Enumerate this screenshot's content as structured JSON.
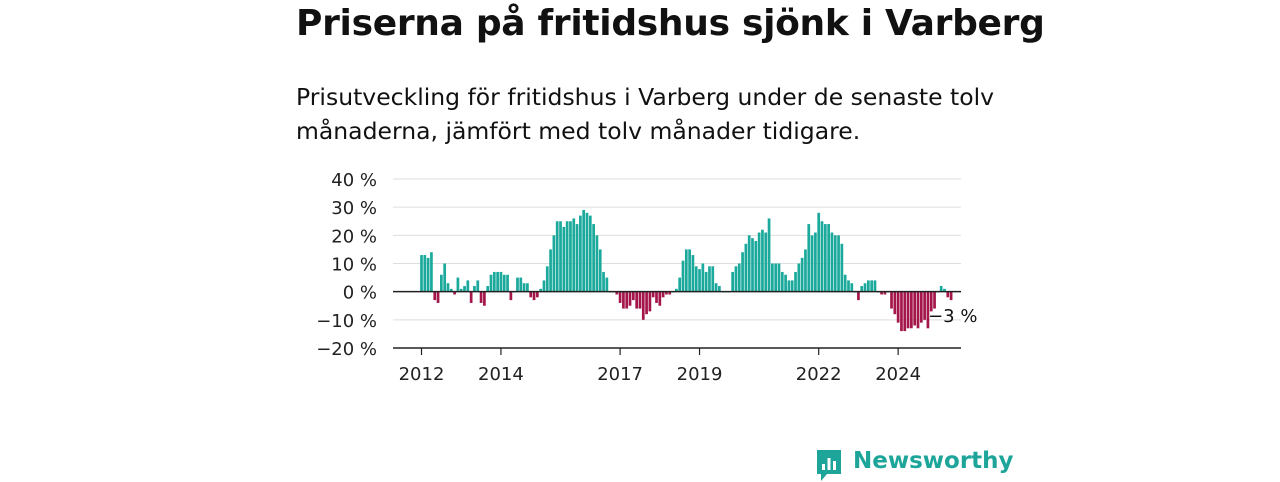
{
  "title": "Priserna på fritidshus sjönk i Varberg",
  "subtitle": "Prisutveckling för fritidshus i Varberg under de senaste tolv månaderna, jämfört med tolv månader tidigare.",
  "brand": {
    "name": "Newsworthy",
    "icon": "newsworthy-logo-icon"
  },
  "colors": {
    "positive": "#1ba99c",
    "negative": "#a4164a",
    "grid": "#dedede",
    "axis": "#222222",
    "brand": "#1da59a"
  },
  "chart_data": {
    "type": "bar",
    "ylim": [
      -20,
      40
    ],
    "yticks": [
      40,
      30,
      20,
      10,
      0,
      -10,
      -20
    ],
    "ytick_labels": [
      "40 %",
      "30 %",
      "20 %",
      "10 %",
      "0 %",
      "−10 %",
      "−20 %"
    ],
    "xtick_labels": [
      "2012",
      "2014",
      "2017",
      "2019",
      "2022",
      "2024"
    ],
    "grid": true,
    "annotation": "−3 %",
    "start": "2012-01",
    "frequency": "monthly",
    "values": [
      13,
      13,
      12,
      14,
      -3,
      -4,
      6,
      10,
      3,
      1,
      -1,
      5,
      1,
      2,
      4,
      -4,
      2,
      4,
      -4,
      -5,
      2,
      6,
      7,
      7,
      7,
      6,
      6,
      -3,
      0,
      5,
      5,
      3,
      3,
      -2,
      -3,
      -2,
      1,
      4,
      9,
      15,
      20,
      25,
      25,
      23,
      25,
      25,
      26,
      24,
      27,
      29,
      28,
      27,
      24,
      20,
      15,
      7,
      5,
      0,
      0,
      -1,
      -4,
      -6,
      -6,
      -5,
      -3,
      -6,
      -6,
      -10,
      -8,
      -7,
      -2,
      -4,
      -5,
      -2,
      -1,
      -1,
      0,
      1,
      5,
      11,
      15,
      15,
      13,
      9,
      8,
      10,
      7,
      9,
      9,
      3,
      2,
      0,
      0,
      0,
      7,
      9,
      10,
      14,
      17,
      20,
      19,
      18,
      21,
      22,
      21,
      26,
      10,
      10,
      10,
      7,
      6,
      4,
      4,
      7,
      10,
      12,
      15,
      24,
      20,
      21,
      28,
      25,
      24,
      24,
      21,
      20,
      20,
      17,
      6,
      4,
      3,
      0,
      -3,
      2,
      3,
      4,
      4,
      4,
      0,
      -1,
      -1,
      0,
      -6,
      -8,
      -11,
      -14,
      -14,
      -13,
      -13,
      -12,
      -13,
      -11,
      -10,
      -13,
      -7,
      -6,
      0,
      2,
      1,
      -2,
      -3
    ]
  }
}
